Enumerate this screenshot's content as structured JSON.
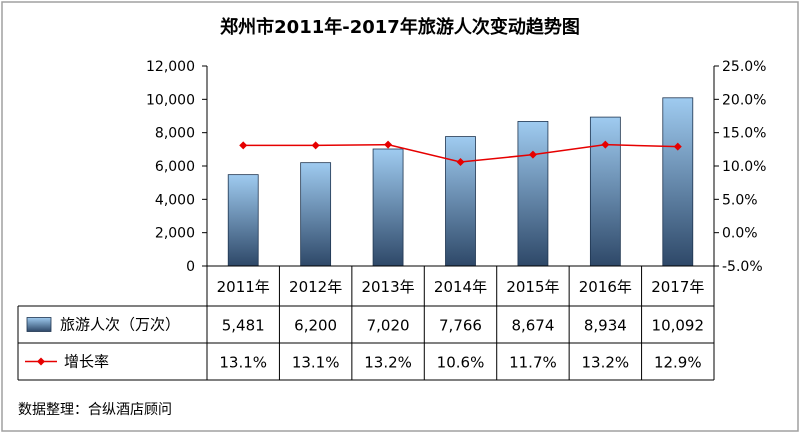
{
  "chart_data": {
    "type": "bar",
    "title": "郑州市2011年-2017年旅游人次变动趋势图",
    "categories": [
      "2011年",
      "2012年",
      "2013年",
      "2014年",
      "2015年",
      "2016年",
      "2017年"
    ],
    "series": [
      {
        "name": "旅游人次（万次）",
        "type": "bar",
        "axis": "left",
        "values": [
          5481,
          6200,
          7020,
          7766,
          8674,
          8934,
          10092
        ],
        "labels": [
          "5,481",
          "6,200",
          "7,020",
          "7,766",
          "8,674",
          "8,934",
          "10,092"
        ]
      },
      {
        "name": "增长率",
        "type": "line",
        "axis": "right",
        "values": [
          13.1,
          13.1,
          13.2,
          10.6,
          11.7,
          13.2,
          12.9
        ],
        "labels": [
          "13.1%",
          "13.1%",
          "13.2%",
          "10.6%",
          "11.7%",
          "13.2%",
          "12.9%"
        ]
      }
    ],
    "y_left": {
      "ylim": [
        0,
        12000
      ],
      "ticks": [
        0,
        2000,
        4000,
        6000,
        8000,
        10000,
        12000
      ],
      "tick_labels": [
        "0",
        "2,000",
        "4,000",
        "6,000",
        "8,000",
        "10,000",
        "12,000"
      ]
    },
    "y_right": {
      "ylim": [
        -5,
        25
      ],
      "ticks": [
        -5,
        0,
        5,
        10,
        15,
        20,
        25
      ],
      "tick_labels": [
        "-5.0%",
        "0.0%",
        "5.0%",
        "10.0%",
        "15.0%",
        "20.0%",
        "25.0%"
      ]
    },
    "grid": false,
    "legend_placement": "data-table"
  },
  "source_note": "数据整理：合纵酒店顾问",
  "colors": {
    "bar_top": "#9fcbf0",
    "bar_bottom": "#2e4868",
    "line": "#e60000",
    "frame": "#000000",
    "border": "#a0a0a0"
  }
}
